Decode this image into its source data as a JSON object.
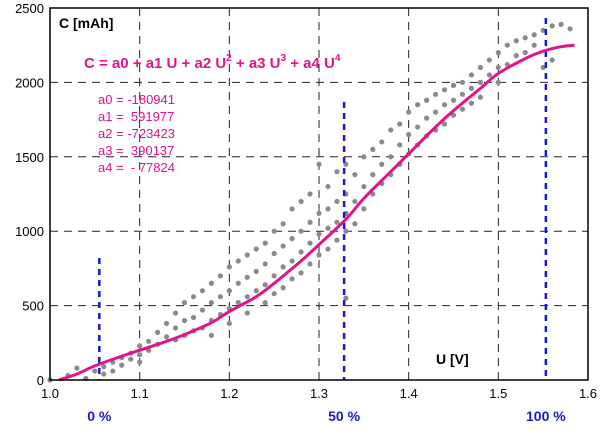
{
  "chart_data": {
    "type": "scatter",
    "title": "",
    "xlabel": "U [V]",
    "ylabel": "C [mAh]",
    "xlim": [
      1.0,
      1.6
    ],
    "ylim": [
      0,
      2500
    ],
    "x_ticks": [
      "1.0",
      "1.1",
      "1.2",
      "1.3",
      "1.4",
      "1.5",
      "1.6"
    ],
    "y_ticks": [
      "0",
      "500",
      "1000",
      "1500",
      "2000",
      "2500"
    ],
    "grid": true,
    "colors": {
      "points": "#8a8a8a",
      "fit": "#e0148c",
      "markers": "#1a1acc",
      "grid": "#222222"
    },
    "fit": {
      "formula_parts": [
        "C = a0 + a1 U + a2 U",
        "2",
        " + a3 U",
        "3",
        " + a4 U",
        "4"
      ],
      "coefficients": [
        "a0 = -180941",
        "a1 =  591977",
        "a2 = -723423",
        "a3 =  390137",
        "a4 =  - 77824"
      ],
      "curve": [
        [
          1.01,
          0
        ],
        [
          1.03,
          40
        ],
        [
          1.05,
          95
        ],
        [
          1.08,
          160
        ],
        [
          1.1,
          200
        ],
        [
          1.13,
          260
        ],
        [
          1.15,
          305
        ],
        [
          1.18,
          385
        ],
        [
          1.2,
          460
        ],
        [
          1.23,
          560
        ],
        [
          1.25,
          650
        ],
        [
          1.28,
          800
        ],
        [
          1.3,
          910
        ],
        [
          1.33,
          1080
        ],
        [
          1.35,
          1220
        ],
        [
          1.38,
          1400
        ],
        [
          1.4,
          1520
        ],
        [
          1.43,
          1700
        ],
        [
          1.45,
          1810
        ],
        [
          1.48,
          1960
        ],
        [
          1.5,
          2060
        ],
        [
          1.53,
          2160
        ],
        [
          1.55,
          2210
        ],
        [
          1.57,
          2240
        ],
        [
          1.585,
          2250
        ]
      ]
    },
    "markers": [
      {
        "x": 1.055,
        "label": "0 %"
      },
      {
        "x": 1.328,
        "label": "50 %"
      },
      {
        "x": 1.553,
        "label": "100 %"
      }
    ],
    "points": [
      [
        1.0,
        0
      ],
      [
        1.02,
        30
      ],
      [
        1.03,
        80
      ],
      [
        1.04,
        10
      ],
      [
        1.05,
        60
      ],
      [
        1.06,
        90
      ],
      [
        1.06,
        40
      ],
      [
        1.07,
        120
      ],
      [
        1.07,
        60
      ],
      [
        1.08,
        150
      ],
      [
        1.08,
        100
      ],
      [
        1.09,
        180
      ],
      [
        1.09,
        140
      ],
      [
        1.1,
        230
      ],
      [
        1.1,
        170
      ],
      [
        1.1,
        120
      ],
      [
        1.11,
        260
      ],
      [
        1.11,
        200
      ],
      [
        1.12,
        320
      ],
      [
        1.12,
        240
      ],
      [
        1.13,
        380
      ],
      [
        1.13,
        290
      ],
      [
        1.14,
        450
      ],
      [
        1.14,
        350
      ],
      [
        1.14,
        270
      ],
      [
        1.15,
        520
      ],
      [
        1.15,
        400
      ],
      [
        1.15,
        300
      ],
      [
        1.16,
        560
      ],
      [
        1.16,
        420
      ],
      [
        1.16,
        330
      ],
      [
        1.17,
        600
      ],
      [
        1.17,
        470
      ],
      [
        1.17,
        350
      ],
      [
        1.18,
        650
      ],
      [
        1.18,
        520
      ],
      [
        1.18,
        400
      ],
      [
        1.18,
        300
      ],
      [
        1.19,
        700
      ],
      [
        1.19,
        560
      ],
      [
        1.19,
        440
      ],
      [
        1.2,
        760
      ],
      [
        1.2,
        600
      ],
      [
        1.2,
        480
      ],
      [
        1.2,
        380
      ],
      [
        1.21,
        800
      ],
      [
        1.21,
        650
      ],
      [
        1.21,
        520
      ],
      [
        1.22,
        840
      ],
      [
        1.22,
        690
      ],
      [
        1.22,
        560
      ],
      [
        1.22,
        450
      ],
      [
        1.23,
        880
      ],
      [
        1.23,
        730
      ],
      [
        1.23,
        600
      ],
      [
        1.24,
        920
      ],
      [
        1.24,
        780
      ],
      [
        1.24,
        640
      ],
      [
        1.24,
        520
      ],
      [
        1.25,
        1000
      ],
      [
        1.25,
        850
      ],
      [
        1.25,
        700
      ],
      [
        1.25,
        580
      ],
      [
        1.26,
        1050
      ],
      [
        1.26,
        900
      ],
      [
        1.26,
        760
      ],
      [
        1.26,
        620
      ],
      [
        1.27,
        1150
      ],
      [
        1.27,
        950
      ],
      [
        1.27,
        800
      ],
      [
        1.27,
        680
      ],
      [
        1.28,
        1200
      ],
      [
        1.28,
        1000
      ],
      [
        1.28,
        860
      ],
      [
        1.28,
        720
      ],
      [
        1.29,
        1250
      ],
      [
        1.29,
        1060
      ],
      [
        1.29,
        920
      ],
      [
        1.29,
        780
      ],
      [
        1.3,
        1450
      ],
      [
        1.3,
        1120
      ],
      [
        1.3,
        980
      ],
      [
        1.3,
        840
      ],
      [
        1.31,
        1300
      ],
      [
        1.31,
        1150
      ],
      [
        1.31,
        1020
      ],
      [
        1.31,
        880
      ],
      [
        1.32,
        1400
      ],
      [
        1.32,
        1200
      ],
      [
        1.32,
        1060
      ],
      [
        1.32,
        940
      ],
      [
        1.33,
        1450
      ],
      [
        1.33,
        1250
      ],
      [
        1.33,
        1120
      ],
      [
        1.33,
        1000
      ],
      [
        1.33,
        550
      ],
      [
        1.34,
        1380
      ],
      [
        1.34,
        1200
      ],
      [
        1.34,
        1050
      ],
      [
        1.35,
        1500
      ],
      [
        1.35,
        1300
      ],
      [
        1.35,
        1150
      ],
      [
        1.36,
        1550
      ],
      [
        1.36,
        1380
      ],
      [
        1.36,
        1250
      ],
      [
        1.37,
        1600
      ],
      [
        1.37,
        1450
      ],
      [
        1.37,
        1320
      ],
      [
        1.38,
        1680
      ],
      [
        1.38,
        1500
      ],
      [
        1.38,
        1380
      ],
      [
        1.39,
        1720
      ],
      [
        1.39,
        1580
      ],
      [
        1.39,
        1450
      ],
      [
        1.4,
        1800
      ],
      [
        1.4,
        1650
      ],
      [
        1.4,
        1520
      ],
      [
        1.41,
        1850
      ],
      [
        1.41,
        1700
      ],
      [
        1.41,
        1580
      ],
      [
        1.42,
        1880
      ],
      [
        1.42,
        1760
      ],
      [
        1.42,
        1640
      ],
      [
        1.43,
        1920
      ],
      [
        1.43,
        1800
      ],
      [
        1.43,
        1680
      ],
      [
        1.44,
        1950
      ],
      [
        1.44,
        1850
      ],
      [
        1.44,
        1720
      ],
      [
        1.45,
        1980
      ],
      [
        1.45,
        1880
      ],
      [
        1.45,
        1780
      ],
      [
        1.46,
        2000
      ],
      [
        1.46,
        1920
      ],
      [
        1.46,
        1820
      ],
      [
        1.47,
        2050
      ],
      [
        1.47,
        1960
      ],
      [
        1.47,
        1860
      ],
      [
        1.48,
        2100
      ],
      [
        1.48,
        2000
      ],
      [
        1.48,
        1900
      ],
      [
        1.49,
        2150
      ],
      [
        1.49,
        2050
      ],
      [
        1.5,
        2200
      ],
      [
        1.5,
        2100
      ],
      [
        1.5,
        2000
      ],
      [
        1.51,
        2250
      ],
      [
        1.51,
        2120
      ],
      [
        1.52,
        2280
      ],
      [
        1.52,
        2180
      ],
      [
        1.53,
        2300
      ],
      [
        1.53,
        2200
      ],
      [
        1.54,
        2320
      ],
      [
        1.54,
        2250
      ],
      [
        1.55,
        2350
      ],
      [
        1.55,
        2100
      ],
      [
        1.56,
        2380
      ],
      [
        1.56,
        2150
      ],
      [
        1.57,
        2390
      ],
      [
        1.58,
        2360
      ]
    ]
  }
}
